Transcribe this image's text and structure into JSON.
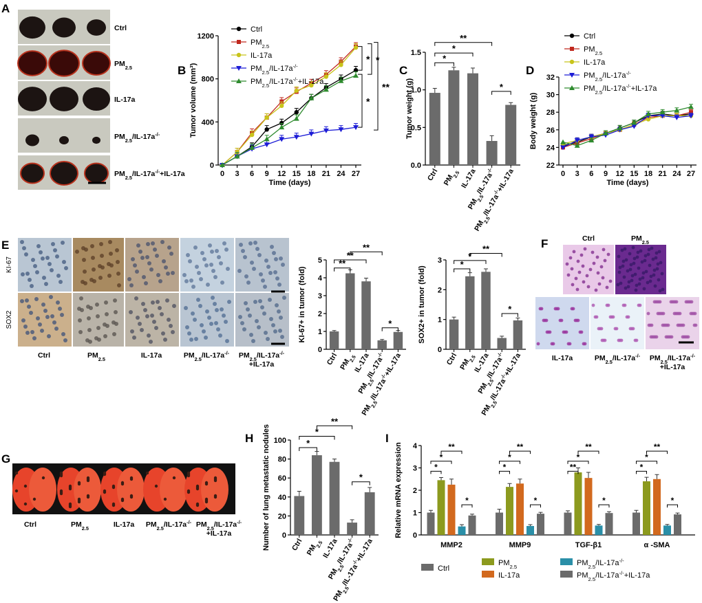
{
  "panel_letters": [
    "A",
    "B",
    "C",
    "D",
    "E",
    "F",
    "G",
    "H",
    "I"
  ],
  "groups": [
    "Ctrl",
    "PM2.5",
    "IL-17a",
    "PM2.5/IL-17a-/-",
    "PM2.5/IL-17a-/-+IL-17a"
  ],
  "colors": {
    "ctrl": "#000000",
    "pm25": "#c0281e",
    "il17a": "#c8c41a",
    "ko": "#1c1cd6",
    "ko_il17a": "#2e8b2e",
    "bar": "#6b6b6b",
    "olive": "#8c9a1e",
    "orange": "#d2691e",
    "teal": "#2a8fa8",
    "axis": "#000000"
  },
  "panelA": {
    "labels": [
      "Ctrl",
      "PM2.5",
      "IL-17a",
      "PM2.5/IL-17a-/-",
      "PM2.5/IL-17a-/-+IL-17a"
    ],
    "tumor_counts": [
      3,
      3,
      3,
      3,
      3
    ]
  },
  "panelE_images": {
    "row_labels": [
      "KI-67",
      "SOX2"
    ],
    "col_labels": [
      "Ctrl",
      "PM2.5",
      "IL-17a",
      "PM2.5/IL-17a-/-",
      "PM2.5/IL-17a-/- +IL-17a"
    ]
  },
  "panelF": {
    "top_labels": [
      "Ctrl",
      "PM2.5"
    ],
    "bottom_labels": [
      "IL-17a",
      "PM2.5/IL-17a-/-",
      "PM2.5/IL-17a-/- +IL-17a"
    ]
  },
  "panelG": {
    "labels": [
      "Ctrl",
      "PM2.5",
      "IL-17a",
      "PM2.5/IL-17a-/-",
      "PM2.5/IL-17a-/- +IL-17a"
    ]
  },
  "chart_data": [
    {
      "id": "B",
      "type": "line",
      "title": "",
      "xlabel": "Time (days)",
      "ylabel": "Tumor volume (mm3)",
      "x": [
        0,
        3,
        6,
        9,
        12,
        15,
        18,
        21,
        24,
        27
      ],
      "ylim": [
        0,
        1200
      ],
      "yticks": [
        0,
        400,
        800,
        1200
      ],
      "series": [
        {
          "name": "Ctrl",
          "values": [
            0,
            80,
            170,
            330,
            390,
            490,
            620,
            720,
            800,
            880
          ]
        },
        {
          "name": "PM2.5",
          "values": [
            0,
            120,
            300,
            440,
            590,
            680,
            760,
            840,
            960,
            1100
          ]
        },
        {
          "name": "IL-17a",
          "values": [
            0,
            120,
            280,
            440,
            550,
            690,
            740,
            820,
            930,
            1090
          ]
        },
        {
          "name": "PM2.5/IL-17a-/-",
          "values": [
            0,
            80,
            150,
            190,
            240,
            260,
            290,
            320,
            330,
            350
          ]
        },
        {
          "name": "PM2.5/IL-17a-/-+IL-17a",
          "values": [
            0,
            80,
            160,
            240,
            350,
            430,
            620,
            700,
            780,
            830
          ]
        }
      ],
      "legend": [
        "Ctrl",
        "PM2.5",
        "IL-17a",
        "PM2.5/IL-17a-/-",
        "PM2.5/IL-17a-/-+IL-17a"
      ],
      "annotations": [
        "*",
        "*",
        "*",
        "**"
      ]
    },
    {
      "id": "C",
      "type": "bar",
      "title": "",
      "xlabel": "",
      "ylabel": "Tumor weight (g)",
      "categories": [
        "Ctrl",
        "PM2.5",
        "IL-17a",
        "PM2.5/IL-17a-/-",
        "PM2.5/IL-17a-/-+IL-17a"
      ],
      "values": [
        0.96,
        1.26,
        1.22,
        0.32,
        0.8
      ],
      "errors": [
        0.06,
        0.04,
        0.07,
        0.07,
        0.03
      ],
      "ylim": [
        0,
        1.5
      ],
      "yticks": [
        0.0,
        0.5,
        1.0,
        1.5
      ],
      "annotations": [
        "*",
        "*",
        "**",
        "*"
      ]
    },
    {
      "id": "D",
      "type": "line",
      "title": "",
      "xlabel": "Time (days)",
      "ylabel": "Body weight (g)",
      "x": [
        0,
        3,
        6,
        9,
        12,
        15,
        18,
        21,
        24,
        27
      ],
      "ylim": [
        22,
        32
      ],
      "yticks": [
        22,
        24,
        26,
        28,
        30,
        32
      ],
      "series": [
        {
          "name": "Ctrl",
          "values": [
            24.2,
            24.6,
            25.2,
            25.6,
            26.2,
            26.8,
            27.6,
            27.8,
            27.6,
            27.8
          ]
        },
        {
          "name": "PM2.5",
          "values": [
            24.0,
            24.5,
            25.0,
            25.6,
            26.0,
            26.6,
            27.4,
            27.6,
            27.6,
            28.0
          ]
        },
        {
          "name": "IL-17a",
          "values": [
            24.4,
            24.8,
            25.2,
            25.6,
            26.0,
            26.6,
            27.2,
            27.6,
            27.6,
            27.6
          ]
        },
        {
          "name": "PM2.5/IL-17a-/-",
          "values": [
            24.0,
            24.8,
            25.2,
            25.4,
            26.0,
            26.4,
            27.6,
            27.6,
            27.4,
            27.6
          ]
        },
        {
          "name": "PM2.5/IL-17a-/-+IL-17a",
          "values": [
            24.6,
            24.2,
            24.8,
            25.6,
            26.2,
            26.8,
            27.8,
            28.0,
            28.2,
            28.6
          ]
        }
      ],
      "legend": [
        "Ctrl",
        "PM2.5",
        "IL-17a",
        "PM2.5/IL-17a-/-",
        "PM2.5/IL-17a-/-+IL-17a"
      ]
    },
    {
      "id": "E1",
      "type": "bar",
      "title": "",
      "xlabel": "",
      "ylabel": "KI-67+ in tumor (fold)",
      "categories": [
        "Ctrl",
        "PM2.5",
        "IL-17a",
        "PM2.5/IL-17a-/-",
        "PM2.5/IL-17a-/-+IL-17a"
      ],
      "values": [
        1.0,
        4.25,
        3.8,
        0.5,
        0.97
      ],
      "errors": [
        0.05,
        0.2,
        0.18,
        0.05,
        0.08
      ],
      "ylim": [
        0,
        5
      ],
      "yticks": [
        0,
        1,
        2,
        3,
        4,
        5
      ],
      "annotations": [
        "**",
        "**",
        "**",
        "*"
      ]
    },
    {
      "id": "E2",
      "type": "bar",
      "title": "",
      "xlabel": "",
      "ylabel": "SOX2+ in tumor (fold)",
      "categories": [
        "Ctrl",
        "PM2.5",
        "IL-17a",
        "PM2.5/IL-17a-/-",
        "PM2.5/IL-17a-/-+IL-17a"
      ],
      "values": [
        1.0,
        2.45,
        2.6,
        0.38,
        0.97
      ],
      "errors": [
        0.08,
        0.12,
        0.1,
        0.06,
        0.08
      ],
      "ylim": [
        0,
        3
      ],
      "yticks": [
        0,
        1,
        2,
        3
      ],
      "annotations": [
        "*",
        "*",
        "**",
        "*"
      ]
    },
    {
      "id": "H",
      "type": "bar",
      "title": "",
      "xlabel": "",
      "ylabel": "Number of lung metastatic nodules",
      "categories": [
        "Ctrl",
        "PM2.5",
        "IL-17a",
        "PM2.5/IL-17a-/-",
        "PM2.5/IL-17a-/-+IL-17a"
      ],
      "values": [
        41,
        84,
        77,
        13,
        45
      ],
      "errors": [
        5,
        4,
        3,
        3,
        5
      ],
      "ylim": [
        0,
        100
      ],
      "yticks": [
        0,
        20,
        40,
        60,
        80,
        100
      ],
      "annotations": [
        "*",
        "*",
        "**",
        "*"
      ]
    },
    {
      "id": "I",
      "type": "bar",
      "title": "",
      "xlabel": "",
      "ylabel": "Relative mRNA expression",
      "categories": [
        "MMP2",
        "MMP9",
        "TGF-β1",
        "α -SMA"
      ],
      "ylim": [
        0,
        4
      ],
      "yticks": [
        0,
        1,
        2,
        3,
        4
      ],
      "series": [
        {
          "name": "Ctrl",
          "values": [
            1.0,
            1.0,
            1.0,
            1.0
          ],
          "errors": [
            0.1,
            0.15,
            0.08,
            0.1
          ]
        },
        {
          "name": "PM2.5",
          "values": [
            2.45,
            2.15,
            2.8,
            2.4
          ],
          "errors": [
            0.12,
            0.15,
            0.2,
            0.18
          ]
        },
        {
          "name": "IL-17a",
          "values": [
            2.25,
            2.3,
            2.55,
            2.5
          ],
          "errors": [
            0.25,
            0.2,
            0.25,
            0.2
          ]
        },
        {
          "name": "PM2.5/IL-17a-/-",
          "values": [
            0.38,
            0.4,
            0.42,
            0.42
          ],
          "errors": [
            0.08,
            0.06,
            0.05,
            0.05
          ]
        },
        {
          "name": "PM2.5/IL-17a-/-+IL-17a",
          "values": [
            0.87,
            0.95,
            0.98,
            0.92
          ],
          "errors": [
            0.06,
            0.06,
            0.06,
            0.06
          ]
        }
      ],
      "legend": [
        "Ctrl",
        "PM2.5",
        "IL-17a",
        "PM2.5/IL-17a-/-",
        "PM2.5/IL-17a-/-+IL-17a"
      ],
      "annotations_per_category": [
        [
          "*",
          "*",
          "**",
          "*"
        ],
        [
          "*",
          "*",
          "**",
          "*"
        ],
        [
          "**",
          "*",
          "**",
          "*"
        ],
        [
          "*",
          "*",
          "**",
          "*"
        ]
      ]
    }
  ]
}
